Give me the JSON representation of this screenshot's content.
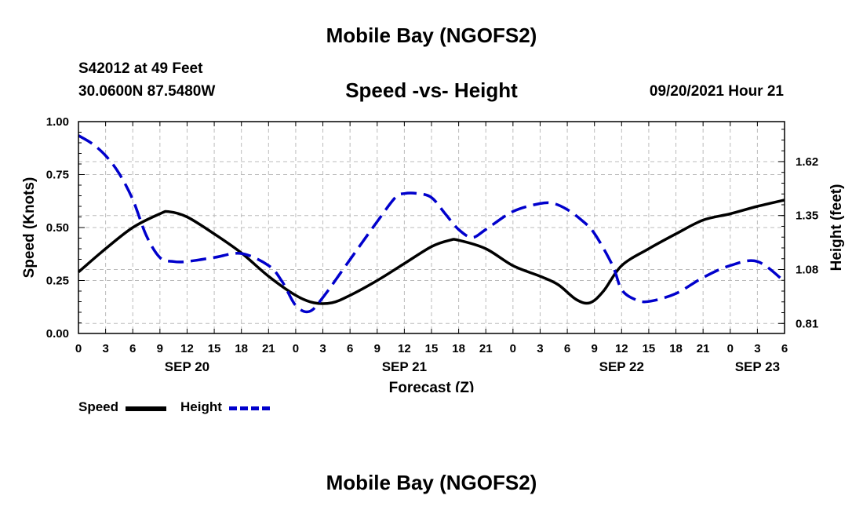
{
  "header": {
    "title": "Mobile Bay (NGOFS2)",
    "station": "S42012 at 49 Feet",
    "coords": "30.0600N  87.5480W",
    "subtitle": "Speed -vs- Height",
    "datetime": "09/20/2021 Hour 21"
  },
  "footer": {
    "title": "Mobile Bay (NGOFS2)"
  },
  "legend": {
    "speed_label": "Speed",
    "height_label": "Height",
    "speed_color": "#000000",
    "height_color": "#0000cc"
  },
  "chart_data": {
    "type": "line",
    "title": "Speed -vs- Height",
    "xlabel": "Forecast (Z)",
    "ylabel": "Speed (Knots)",
    "y2label": "Height (feet)",
    "xlim": [
      0,
      78
    ],
    "ylim": [
      0,
      1.0
    ],
    "y2lim": [
      0.76,
      1.82
    ],
    "grid": true,
    "x_ticks": [
      {
        "h": 0,
        "label": "0"
      },
      {
        "h": 3,
        "label": "3"
      },
      {
        "h": 6,
        "label": "6"
      },
      {
        "h": 9,
        "label": "9"
      },
      {
        "h": 12,
        "label": "12"
      },
      {
        "h": 15,
        "label": "15"
      },
      {
        "h": 18,
        "label": "18"
      },
      {
        "h": 21,
        "label": "21"
      },
      {
        "h": 24,
        "label": "0"
      },
      {
        "h": 27,
        "label": "3"
      },
      {
        "h": 30,
        "label": "6"
      },
      {
        "h": 33,
        "label": "9"
      },
      {
        "h": 36,
        "label": "12"
      },
      {
        "h": 39,
        "label": "15"
      },
      {
        "h": 42,
        "label": "18"
      },
      {
        "h": 45,
        "label": "21"
      },
      {
        "h": 48,
        "label": "0"
      },
      {
        "h": 51,
        "label": "3"
      },
      {
        "h": 54,
        "label": "6"
      },
      {
        "h": 57,
        "label": "9"
      },
      {
        "h": 60,
        "label": "12"
      },
      {
        "h": 63,
        "label": "15"
      },
      {
        "h": 66,
        "label": "18"
      },
      {
        "h": 69,
        "label": "21"
      },
      {
        "h": 72,
        "label": "0"
      },
      {
        "h": 75,
        "label": "3"
      },
      {
        "h": 78,
        "label": "6"
      }
    ],
    "date_labels": [
      {
        "h": 12,
        "label": "SEP 20"
      },
      {
        "h": 36,
        "label": "SEP 21"
      },
      {
        "h": 60,
        "label": "SEP 22"
      },
      {
        "h": 75,
        "label": "SEP 23"
      }
    ],
    "y_ticks": [
      "0.00",
      "0.25",
      "0.50",
      "0.75",
      "1.00"
    ],
    "y2_ticks": [
      "0.81",
      "1.08",
      "1.35",
      "1.62"
    ],
    "series": [
      {
        "name": "Speed",
        "axis": "left",
        "color": "#000000",
        "dash": false,
        "x": [
          0,
          3,
          6,
          9,
          10,
          12,
          15,
          18,
          21,
          24,
          26,
          28,
          30,
          33,
          36,
          39,
          41,
          42,
          45,
          48,
          51,
          53,
          55,
          56.5,
          58,
          60,
          63,
          66,
          69,
          72,
          75,
          78
        ],
        "y": [
          0.29,
          0.4,
          0.5,
          0.565,
          0.575,
          0.55,
          0.47,
          0.38,
          0.27,
          0.18,
          0.145,
          0.145,
          0.18,
          0.25,
          0.33,
          0.41,
          0.44,
          0.44,
          0.4,
          0.32,
          0.27,
          0.23,
          0.16,
          0.145,
          0.2,
          0.32,
          0.4,
          0.47,
          0.535,
          0.565,
          0.6,
          0.63
        ]
      },
      {
        "name": "Height",
        "axis": "right",
        "color": "#0000cc",
        "dash": true,
        "x": [
          0,
          1.5,
          3,
          4.5,
          6,
          7.5,
          9,
          10.5,
          12,
          15,
          18,
          21,
          22.5,
          24,
          25.5,
          27,
          30,
          33,
          35,
          36,
          37.5,
          39,
          40.5,
          42,
          43.5,
          45,
          48,
          51,
          52.5,
          54,
          55.5,
          57,
          59,
          60,
          61.5,
          63,
          66,
          69,
          72,
          75,
          78
        ],
        "y": [
          1.75,
          1.71,
          1.65,
          1.56,
          1.43,
          1.25,
          1.14,
          1.12,
          1.12,
          1.14,
          1.16,
          1.1,
          1.02,
          0.9,
          0.87,
          0.94,
          1.13,
          1.32,
          1.44,
          1.46,
          1.46,
          1.44,
          1.36,
          1.28,
          1.24,
          1.28,
          1.37,
          1.41,
          1.41,
          1.38,
          1.33,
          1.26,
          1.1,
          0.98,
          0.93,
          0.92,
          0.96,
          1.04,
          1.1,
          1.12,
          1.02
        ]
      }
    ]
  }
}
